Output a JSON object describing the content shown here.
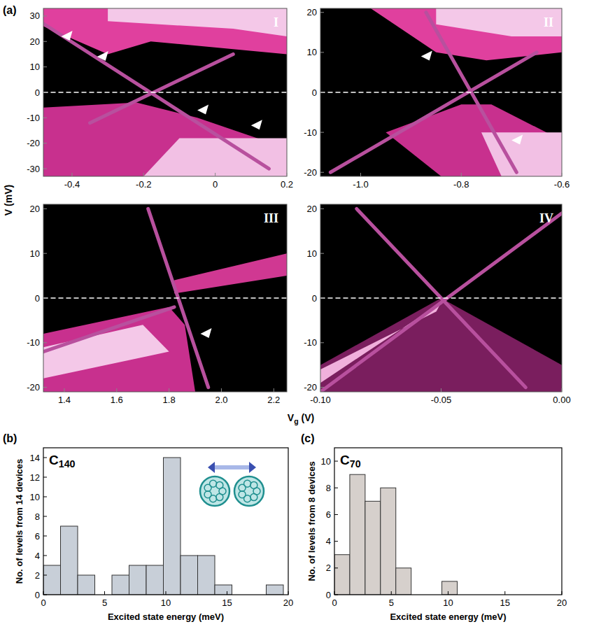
{
  "figure": {
    "label": "(a)",
    "xlabel": "Vg (V)",
    "ylabel": "V (mV)"
  },
  "chart_data": [
    {
      "type": "heatmap",
      "panel": "I",
      "xlim": [
        -0.48,
        0.2
      ],
      "ylim": [
        -33,
        33
      ],
      "xticks": [
        -0.4,
        -0.2,
        0,
        0.2
      ],
      "yticks": [
        -30,
        -20,
        -10,
        0,
        10,
        20,
        30
      ],
      "regions": [
        {
          "x": [
            -0.48,
            -0.3,
            -0.18,
            0.2,
            0.2,
            -0.48
          ],
          "y": [
            26,
            15,
            20,
            15,
            33,
            33
          ],
          "color": "#e0409e"
        },
        {
          "x": [
            -0.3,
            0.05,
            0.2,
            0.2,
            -0.3
          ],
          "y": [
            28,
            25,
            22,
            33,
            33
          ],
          "color": "#f4c8e8"
        },
        {
          "x": [
            -0.48,
            -0.22,
            -0.05,
            0.2,
            0.2,
            -0.48
          ],
          "y": [
            -6,
            -4,
            -10,
            -22,
            -33,
            -33
          ],
          "color": "#c8308e"
        },
        {
          "x": [
            -0.1,
            0.2,
            0.2,
            -0.2
          ],
          "y": [
            -18,
            -18,
            -33,
            -33
          ],
          "color": "#f2c0e4"
        }
      ],
      "lines": [
        {
          "x": [
            -0.48,
            0.15
          ],
          "y": [
            27,
            -30
          ],
          "color": "#b8509e"
        },
        {
          "x": [
            -0.35,
            0.05
          ],
          "y": [
            -12,
            15
          ],
          "color": "#b8509e"
        },
        {
          "x": [
            -0.48,
            0.2
          ],
          "y": [
            0,
            0
          ],
          "color": "#ffffff",
          "line_style": "dashed"
        }
      ],
      "arrows": {
        "x": [
          -0.43,
          -0.33,
          -0.05,
          0.1
        ],
        "y": [
          22,
          14,
          -7,
          -13
        ]
      }
    },
    {
      "type": "heatmap",
      "panel": "II",
      "xlim": [
        -1.08,
        -0.6
      ],
      "ylim": [
        -21,
        21
      ],
      "xticks": [
        {
          "value": -1,
          "label": "-1.0"
        },
        -0.8,
        -0.6
      ],
      "yticks": [
        -20,
        -10,
        0,
        10,
        20
      ],
      "regions": [
        {
          "x": [
            -0.98,
            -0.85,
            -0.75,
            -0.6,
            -0.6,
            -0.98
          ],
          "y": [
            21,
            10,
            8,
            10,
            21,
            21
          ],
          "color": "#e0409e"
        },
        {
          "x": [
            -0.85,
            -0.7,
            -0.6,
            -0.6,
            -0.85
          ],
          "y": [
            17,
            14,
            14,
            21,
            21
          ],
          "color": "#f4c8e8"
        },
        {
          "x": [
            -0.95,
            -0.8,
            -0.74,
            -0.6,
            -0.6,
            -0.84
          ],
          "y": [
            -10,
            -3,
            -3,
            -12,
            -21,
            -21
          ],
          "color": "#c8308e"
        },
        {
          "x": [
            -0.76,
            -0.6,
            -0.6,
            -0.72
          ],
          "y": [
            -10,
            -10,
            -21,
            -21
          ],
          "color": "#f2c0e4"
        }
      ],
      "lines": [
        {
          "x": [
            -1.06,
            -0.65
          ],
          "y": [
            -20,
            10
          ],
          "color": "#b8509e"
        },
        {
          "x": [
            -0.87,
            -0.69
          ],
          "y": [
            20,
            -20
          ],
          "color": "#b8509e"
        },
        {
          "x": [
            -1.08,
            -0.6
          ],
          "y": [
            0,
            0
          ],
          "color": "#ffffff",
          "line_style": "dashed"
        }
      ],
      "arrows": {
        "x": [
          -0.88,
          -0.7
        ],
        "y": [
          9,
          -12
        ]
      }
    },
    {
      "type": "heatmap",
      "panel": "III",
      "xlim": [
        1.32,
        2.25
      ],
      "ylim": [
        -21,
        21
      ],
      "xticks": [
        1.4,
        1.6,
        1.8,
        {
          "value": 2,
          "label": "2.0"
        },
        2.2
      ],
      "yticks": [
        -20,
        -10,
        0,
        10,
        20
      ],
      "regions": [
        {
          "x": [
            1.32,
            1.8,
            1.86,
            1.9,
            1.32
          ],
          "y": [
            -8,
            -2,
            -6,
            -21,
            -21
          ],
          "color": "#c8308e"
        },
        {
          "x": [
            1.32,
            1.7,
            1.8,
            1.32
          ],
          "y": [
            -11,
            -6,
            -12,
            -18
          ],
          "color": "#f4c8e8"
        },
        {
          "x": [
            1.82,
            2.25,
            2.25,
            1.82
          ],
          "y": [
            1,
            5,
            10,
            4
          ],
          "color": "#d03892"
        }
      ],
      "lines": [
        {
          "x": [
            1.72,
            1.95
          ],
          "y": [
            20,
            -20
          ],
          "color": "#b8509e"
        },
        {
          "x": [
            1.32,
            1.82
          ],
          "y": [
            -12,
            -2
          ],
          "color": "#b8509e"
        },
        {
          "x": [
            1.32,
            2.25
          ],
          "y": [
            0,
            0
          ],
          "color": "#ffffff",
          "line_style": "dashed"
        }
      ],
      "arrows": {
        "x": [
          1.92
        ],
        "y": [
          -8
        ]
      }
    },
    {
      "type": "heatmap",
      "panel": "IV",
      "xlim": [
        -0.1,
        0.0
      ],
      "ylim": [
        -21,
        21
      ],
      "xticks": [
        {
          "value": -0.1,
          "label": "-0.10"
        },
        {
          "value": -0.05,
          "label": "-0.05"
        },
        {
          "value": 0,
          "label": "0.00"
        }
      ],
      "yticks": [
        -20,
        -10,
        0,
        10,
        20
      ],
      "regions": [
        {
          "x": [
            -0.1,
            -0.05,
            0,
            0,
            -0.1
          ],
          "y": [
            -15,
            0,
            -15,
            -21,
            -21
          ],
          "color": "#7a1e5e"
        },
        {
          "x": [
            -0.1,
            -0.05,
            -0.052,
            -0.1
          ],
          "y": [
            -19,
            -1,
            -3,
            -16
          ],
          "color": "#f0b0dc"
        }
      ],
      "lines": [
        {
          "x": [
            -0.1,
            0.0
          ],
          "y": [
            -21,
            19
          ],
          "color": "#b8509e"
        },
        {
          "x": [
            -0.085,
            -0.015
          ],
          "y": [
            20,
            -20
          ],
          "color": "#b8509e"
        },
        {
          "x": [
            -0.1,
            0.0
          ],
          "y": [
            0,
            0
          ],
          "color": "#ffffff",
          "line_style": "dashed"
        }
      ],
      "arrows": {
        "x": [],
        "y": []
      }
    },
    {
      "type": "histogram",
      "label": "(b)",
      "title": "C140",
      "xlabel": "Excited state energy (meV)",
      "ylabel": "No. of levels from 14 devices",
      "bins": [
        0,
        1.4,
        2.8,
        4.2,
        5.6,
        7,
        8.4,
        9.8,
        11.2,
        12.6,
        14,
        15.4,
        16.8,
        18.2,
        19.6
      ],
      "counts": [
        3,
        7,
        2,
        0,
        2,
        3,
        3,
        14,
        4,
        4,
        1,
        0,
        0,
        1
      ],
      "color": "#c8cfd8",
      "xlim": [
        0,
        20
      ],
      "ylim": [
        0,
        15
      ],
      "xticks": [
        0,
        5,
        10,
        15,
        20
      ],
      "yticks": [
        0,
        2,
        4,
        6,
        8,
        10,
        12,
        14
      ]
    },
    {
      "type": "histogram",
      "label": "(c)",
      "title": "C70",
      "xlabel": "Excited state energy (meV)",
      "ylabel": "No. of levels from 8 devices",
      "bins": [
        0,
        1.35,
        2.7,
        4.05,
        5.4,
        6.75,
        8.1,
        9.45,
        10.8
      ],
      "counts": [
        3,
        9,
        7,
        8,
        2,
        0,
        0,
        1
      ],
      "color": "#d6d0cc",
      "xlim": [
        0,
        20
      ],
      "ylim": [
        0,
        11
      ],
      "xticks": [
        0,
        5,
        10,
        15,
        20
      ],
      "yticks": [
        0,
        2,
        4,
        6,
        8,
        10
      ]
    }
  ]
}
